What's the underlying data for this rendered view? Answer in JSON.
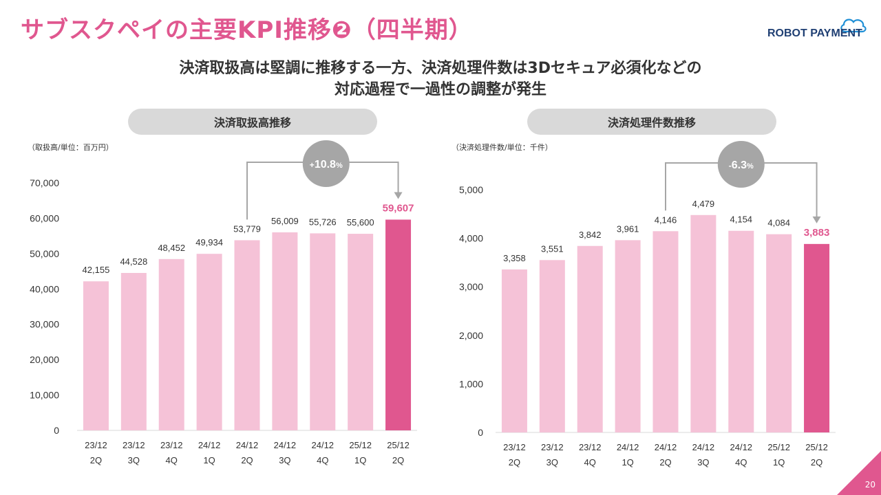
{
  "header": {
    "title": "サブスクペイの主要KPI推移❷（四半期）",
    "logo_text": "ROBOT PAYMENT",
    "subtitle_line1": "決済取扱高は堅調に推移する一方、決済処理件数は3Dセキュア必須化などの",
    "subtitle_line2": "対応過程で一過性の調整が発生"
  },
  "footer": {
    "page_number": "20"
  },
  "colors": {
    "accent": "#e0578f",
    "bar_light": "#f5c2d7",
    "bar_highlight": "#e0578f",
    "connector": "#a6a6a6"
  },
  "chart_data": [
    {
      "type": "bar",
      "title": "決済取扱高推移",
      "unit_label": "（取扱高/単位：百万円）",
      "categories": [
        "23/12",
        "23/12",
        "23/12",
        "24/12",
        "24/12",
        "24/12",
        "24/12",
        "25/12",
        "25/12"
      ],
      "quarters": [
        "2Q",
        "3Q",
        "4Q",
        "1Q",
        "2Q",
        "3Q",
        "4Q",
        "1Q",
        "2Q"
      ],
      "values": [
        42155,
        44528,
        48452,
        49934,
        53779,
        56009,
        55726,
        55600,
        59607
      ],
      "value_labels": [
        "42,155",
        "44,528",
        "48,452",
        "49,934",
        "53,779",
        "56,009",
        "55,726",
        "55,600",
        "59,607"
      ],
      "highlight_index": 8,
      "ylim": [
        0,
        70000
      ],
      "yticks": [
        0,
        10000,
        20000,
        30000,
        40000,
        50000,
        60000,
        70000
      ],
      "ytick_labels": [
        "0",
        "10,000",
        "20,000",
        "30,000",
        "40,000",
        "50,000",
        "60,000",
        "70,000"
      ],
      "comparison": {
        "from_index": 4,
        "to_index": 8,
        "sign": "+",
        "value": "10.8",
        "unit": "%"
      }
    },
    {
      "type": "bar",
      "title": "決済処理件数推移",
      "unit_label": "（決済処理件数/単位：千件）",
      "categories": [
        "23/12",
        "23/12",
        "23/12",
        "24/12",
        "24/12",
        "24/12",
        "24/12",
        "25/12",
        "25/12"
      ],
      "quarters": [
        "2Q",
        "3Q",
        "4Q",
        "1Q",
        "2Q",
        "3Q",
        "4Q",
        "1Q",
        "2Q"
      ],
      "values": [
        3358,
        3551,
        3842,
        3961,
        4146,
        4479,
        4154,
        4084,
        3883
      ],
      "value_labels": [
        "3,358",
        "3,551",
        "3,842",
        "3,961",
        "4,146",
        "4,479",
        "4,154",
        "4,084",
        "3,883"
      ],
      "highlight_index": 8,
      "ylim": [
        0,
        5000
      ],
      "yticks": [
        0,
        1000,
        2000,
        3000,
        4000,
        5000
      ],
      "ytick_labels": [
        "0",
        "1,000",
        "2,000",
        "3,000",
        "4,000",
        "5,000"
      ],
      "comparison": {
        "from_index": 4,
        "to_index": 8,
        "sign": "-",
        "value": "6.3",
        "unit": "%"
      }
    }
  ]
}
